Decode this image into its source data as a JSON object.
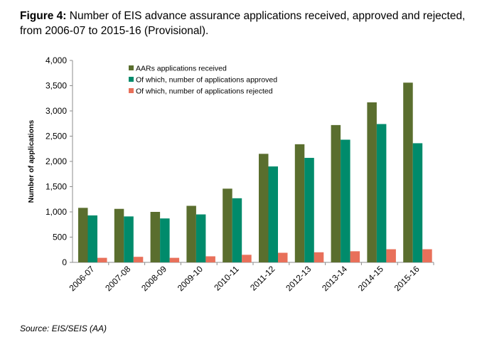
{
  "caption": {
    "lead": "Figure 4:",
    "text": " Number of EIS advance assurance applications received, approved and rejected, from 2006-07 to 2015-16 (Provisional)."
  },
  "source": "Source: EIS/SEIS (AA)",
  "chart_data": {
    "type": "bar",
    "title": "Number of EIS advance assurance applications received, approved and rejected, from 2006-07 to 2015-16 (Provisional).",
    "xlabel": "",
    "ylabel": "Number of applications",
    "ylim": [
      0,
      4000
    ],
    "yticks": [
      0,
      500,
      1000,
      1500,
      2000,
      2500,
      3000,
      3500,
      4000
    ],
    "ytick_labels": [
      "0",
      "500",
      "1,000",
      "1,500",
      "2,000",
      "2,500",
      "3,000",
      "3,500",
      "4,000"
    ],
    "grid": false,
    "legend_position": "top-left",
    "categories": [
      "2006-07",
      "2007-08",
      "2008-09",
      "2009-10",
      "2010-11",
      "2011-12",
      "2012-13",
      "2013-14",
      "2014-15",
      "2015-16"
    ],
    "series": [
      {
        "name": "AARs applications received",
        "color": "#5a6e2e",
        "values": [
          1080,
          1060,
          1000,
          1120,
          1460,
          2150,
          2340,
          2720,
          3170,
          3560
        ]
      },
      {
        "name": "Of which, number of applications approved",
        "color": "#008b6b",
        "values": [
          930,
          910,
          870,
          950,
          1270,
          1900,
          2070,
          2430,
          2740,
          2360
        ]
      },
      {
        "name": "Of which, number of applications rejected",
        "color": "#e8705a",
        "values": [
          90,
          110,
          90,
          120,
          150,
          190,
          200,
          220,
          260,
          260
        ]
      }
    ]
  }
}
